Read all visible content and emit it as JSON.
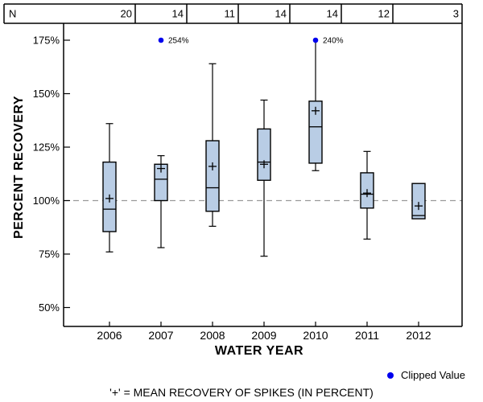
{
  "n_table": {
    "label": "N",
    "values": [
      "20",
      "14",
      "11",
      "14",
      "14",
      "12",
      "3"
    ]
  },
  "chart_data": {
    "type": "box",
    "title": "",
    "xlabel": "WATER YEAR",
    "ylabel": "PERCENT RECOVERY",
    "categories": [
      "2006",
      "2007",
      "2008",
      "2009",
      "2010",
      "2011",
      "2012"
    ],
    "n_values": [
      20,
      14,
      11,
      14,
      14,
      12,
      3
    ],
    "y_ticks": [
      {
        "value": 175,
        "label": "175%"
      },
      {
        "value": 150,
        "label": "150%"
      },
      {
        "value": 125,
        "label": "125%"
      },
      {
        "value": 100,
        "label": "100%"
      },
      {
        "value": 75,
        "label": "75%"
      },
      {
        "value": 50,
        "label": "50%"
      }
    ],
    "ylim": [
      41,
      183
    ],
    "reference_line": 100,
    "clip_level": 175,
    "grid": false,
    "boxes": [
      {
        "year": "2006",
        "whisker_low": 76,
        "q1": 85.5,
        "median": 96,
        "mean": 101,
        "q3": 118,
        "whisker_high": 136
      },
      {
        "year": "2007",
        "whisker_low": 78,
        "q1": 100,
        "median": 110,
        "mean": 115,
        "q3": 117,
        "whisker_high": 121,
        "clipped_value": 254,
        "clipped_label": "254%",
        "clipped_connected": false
      },
      {
        "year": "2008",
        "whisker_low": 88,
        "q1": 95,
        "median": 106,
        "mean": 116,
        "q3": 128,
        "whisker_high": 164
      },
      {
        "year": "2009",
        "whisker_low": 74,
        "q1": 109.5,
        "median": 118,
        "mean": 117,
        "q3": 133.5,
        "whisker_high": 147
      },
      {
        "year": "2010",
        "whisker_low": 114,
        "q1": 117.5,
        "median": 134.5,
        "mean": 142,
        "q3": 146.5,
        "whisker_high": 175,
        "clipped_value": 240,
        "clipped_label": "240%",
        "clipped_connected": true
      },
      {
        "year": "2011",
        "whisker_low": 82,
        "q1": 96.5,
        "median": 103,
        "mean": 103.5,
        "q3": 113,
        "whisker_high": 123
      },
      {
        "year": "2012",
        "whisker_low": null,
        "q1": 91.5,
        "median": 93,
        "mean": 97.5,
        "q3": 108,
        "whisker_high": null
      }
    ],
    "legend": {
      "label": "Clipped Value"
    },
    "footnote": "'+' = MEAN RECOVERY OF SPIKES (IN PERCENT)",
    "colors": {
      "box_fill": "#b9cde5",
      "box_stroke": "#000000",
      "clipped_dot": "#0000ee",
      "reference_line": "#9a9a9a",
      "axis": "#000000"
    }
  }
}
